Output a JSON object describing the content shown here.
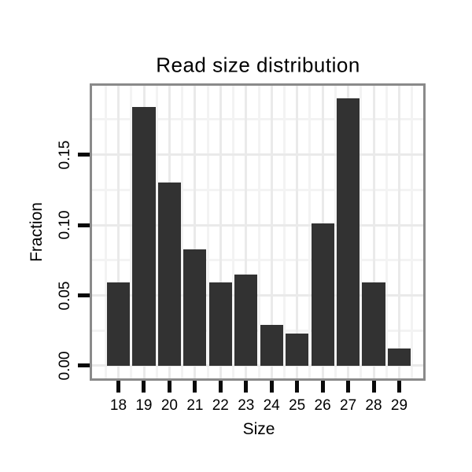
{
  "chart_data": {
    "type": "bar",
    "title": "Read size distribution",
    "xlabel": "Size",
    "ylabel": "Fraction",
    "categories": [
      "18",
      "19",
      "20",
      "21",
      "22",
      "23",
      "24",
      "25",
      "26",
      "27",
      "28",
      "29"
    ],
    "values": [
      0.059,
      0.184,
      0.13,
      0.083,
      0.059,
      0.065,
      0.029,
      0.023,
      0.101,
      0.19,
      0.059,
      0.012
    ],
    "y_ticks": [
      0,
      0.05,
      0.1,
      0.15
    ],
    "y_tick_labels": [
      "0.00",
      "0.05",
      "0.10",
      "0.15"
    ],
    "y_minor_gridlines": [
      0.025,
      0.075,
      0.125,
      0.175
    ],
    "ylim": [
      -0.009,
      0.199
    ],
    "grid": "major and minor, both axes",
    "legend": false,
    "colors": {
      "bar": "#323232",
      "panel_border": "#8a8a8a",
      "grid_major": "#eaeaea",
      "grid_minor": "#f3f3f3",
      "tick": "#0a0a0a",
      "text": "#000000",
      "background": "#ffffff"
    }
  }
}
